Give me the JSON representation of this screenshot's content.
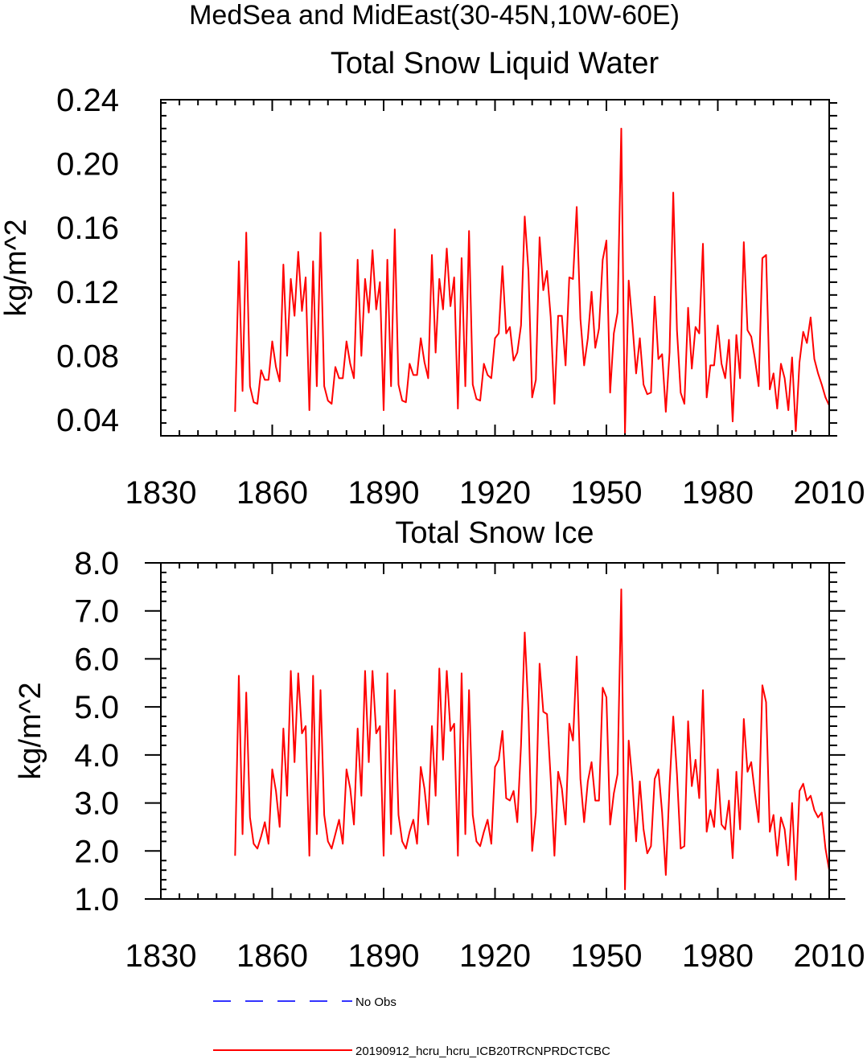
{
  "figure_title": "MedSea and MidEast(30-45N,10W-60E)",
  "legend": [
    {
      "label": "No Obs",
      "color": "#3333ff",
      "style": "dashed"
    },
    {
      "label": "20190912_hcru_hcru_ICB20TRCNPRDCTCBC",
      "color": "#ff0000",
      "style": "solid"
    }
  ],
  "chart_data": [
    {
      "type": "line",
      "title": "Total Snow Liquid Water",
      "xlabel": "",
      "ylabel": "kg/m^2",
      "xlim": [
        1830,
        2010
      ],
      "ylim": [
        0.03,
        0.24
      ],
      "xticks": [
        1830,
        1860,
        1890,
        1920,
        1950,
        1980,
        2010
      ],
      "xtick_labels": [
        "1830",
        "1860",
        "1890",
        "1920",
        "1950",
        "1980",
        "2010"
      ],
      "yticks": [
        0.04,
        0.08,
        0.12,
        0.16,
        0.2,
        0.24
      ],
      "ytick_labels": [
        "0.04",
        "0.08",
        "0.12",
        "0.16",
        "0.20",
        "0.24"
      ],
      "x_start": 1850,
      "series": [
        {
          "name": "20190912_hcru_hcru_ICB20TRCNPRDCTCBC",
          "color": "#ff0000",
          "values": [
            0.045,
            0.139,
            0.058,
            0.157,
            0.061,
            0.051,
            0.05,
            0.071,
            0.065,
            0.065,
            0.089,
            0.073,
            0.064,
            0.137,
            0.08,
            0.128,
            0.105,
            0.145,
            0.108,
            0.129,
            0.046,
            0.139,
            0.061,
            0.157,
            0.061,
            0.052,
            0.05,
            0.073,
            0.066,
            0.066,
            0.089,
            0.075,
            0.066,
            0.14,
            0.08,
            0.128,
            0.107,
            0.146,
            0.109,
            0.126,
            0.046,
            0.14,
            0.061,
            0.159,
            0.062,
            0.052,
            0.051,
            0.075,
            0.068,
            0.068,
            0.091,
            0.076,
            0.066,
            0.143,
            0.082,
            0.128,
            0.109,
            0.147,
            0.111,
            0.129,
            0.047,
            0.141,
            0.061,
            0.158,
            0.062,
            0.053,
            0.052,
            0.075,
            0.068,
            0.066,
            0.091,
            0.094,
            0.136,
            0.094,
            0.098,
            0.077,
            0.082,
            0.099,
            0.167,
            0.133,
            0.054,
            0.065,
            0.154,
            0.121,
            0.133,
            0.104,
            0.05,
            0.105,
            0.105,
            0.074,
            0.129,
            0.128,
            0.173,
            0.103,
            0.074,
            0.091,
            0.12,
            0.085,
            0.097,
            0.14,
            0.152,
            0.057,
            0.094,
            0.107,
            0.222,
            0.032,
            0.127,
            0.1,
            0.069,
            0.091,
            0.062,
            0.056,
            0.057,
            0.117,
            0.078,
            0.081,
            0.045,
            0.082,
            0.182,
            0.096,
            0.057,
            0.05,
            0.11,
            0.072,
            0.098,
            0.094,
            0.15,
            0.054,
            0.074,
            0.074,
            0.099,
            0.075,
            0.066,
            0.09,
            0.039,
            0.093,
            0.066,
            0.151,
            0.096,
            0.092,
            0.078,
            0.061,
            0.141,
            0.143,
            0.059,
            0.069,
            0.047,
            0.075,
            0.066,
            0.046,
            0.079,
            0.033,
            0.076,
            0.095,
            0.088,
            0.104,
            0.078,
            0.069,
            0.062,
            0.054,
            0.049
          ]
        }
      ]
    },
    {
      "type": "line",
      "title": "Total Snow Ice",
      "xlabel": "",
      "ylabel": "kg/m^2",
      "xlim": [
        1830,
        2010
      ],
      "ylim": [
        1.0,
        8.0
      ],
      "xticks": [
        1830,
        1860,
        1890,
        1920,
        1950,
        1980,
        2010
      ],
      "xtick_labels": [
        "1830",
        "1860",
        "1890",
        "1920",
        "1950",
        "1980",
        "2010"
      ],
      "yticks": [
        1.0,
        2.0,
        3.0,
        4.0,
        5.0,
        6.0,
        7.0,
        8.0
      ],
      "ytick_labels": [
        "1.0",
        "2.0",
        "3.0",
        "4.0",
        "5.0",
        "6.0",
        "7.0",
        "8.0"
      ],
      "x_start": 1850,
      "series": [
        {
          "name": "20190912_hcru_hcru_ICB20TRCNPRDCTCBC",
          "color": "#ff0000",
          "values": [
            1.9,
            5.65,
            2.35,
            5.3,
            2.7,
            2.15,
            2.05,
            2.3,
            2.6,
            2.15,
            3.7,
            3.25,
            2.5,
            4.55,
            3.15,
            5.75,
            3.85,
            5.7,
            4.45,
            4.6,
            1.9,
            5.65,
            2.35,
            5.35,
            2.75,
            2.2,
            2.05,
            2.35,
            2.65,
            2.15,
            3.7,
            3.3,
            2.55,
            4.55,
            3.15,
            5.75,
            3.85,
            5.75,
            4.45,
            4.6,
            1.9,
            5.7,
            2.35,
            5.35,
            2.75,
            2.2,
            2.05,
            2.4,
            2.65,
            2.15,
            3.75,
            3.3,
            2.55,
            4.6,
            3.15,
            5.8,
            3.9,
            5.75,
            4.5,
            4.65,
            1.9,
            5.7,
            2.35,
            5.35,
            2.75,
            2.2,
            2.1,
            2.4,
            2.65,
            2.15,
            3.75,
            3.9,
            4.5,
            3.1,
            3.05,
            3.25,
            2.6,
            4.2,
            6.55,
            4.9,
            2.0,
            2.8,
            5.9,
            4.9,
            4.85,
            3.5,
            1.9,
            3.65,
            3.3,
            2.55,
            4.65,
            4.3,
            6.05,
            3.5,
            2.6,
            3.45,
            3.85,
            3.05,
            3.05,
            5.4,
            5.2,
            2.55,
            3.2,
            3.6,
            7.45,
            1.2,
            4.3,
            3.45,
            2.2,
            3.45,
            2.45,
            1.95,
            2.1,
            3.5,
            3.7,
            2.8,
            1.5,
            3.35,
            4.8,
            3.6,
            2.05,
            2.1,
            4.7,
            3.35,
            3.9,
            3.1,
            5.35,
            2.4,
            2.85,
            2.5,
            3.7,
            2.55,
            2.45,
            3.05,
            1.85,
            3.65,
            2.45,
            4.75,
            3.65,
            3.85,
            3.2,
            2.6,
            5.45,
            5.1,
            2.4,
            2.75,
            1.9,
            2.7,
            2.45,
            1.7,
            3.0,
            1.4,
            3.25,
            3.4,
            3.05,
            3.15,
            2.85,
            2.7,
            2.8,
            2.05,
            1.6
          ]
        }
      ]
    }
  ]
}
